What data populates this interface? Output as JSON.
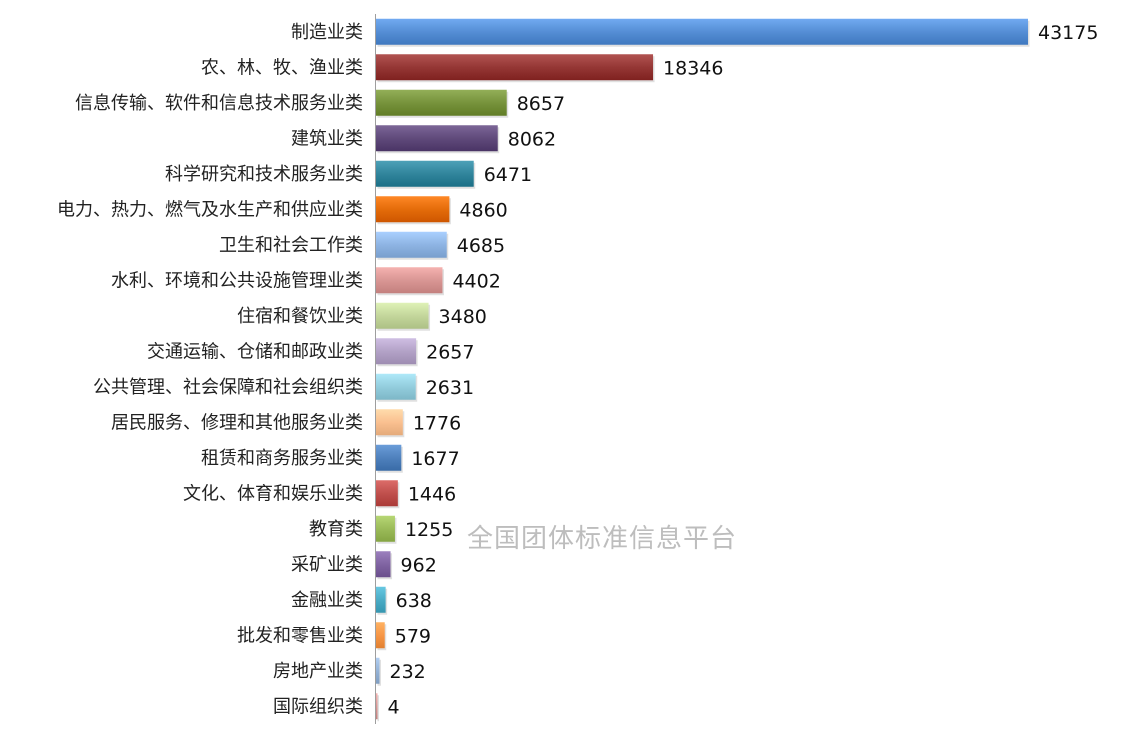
{
  "watermark": "全国团体标准信息平台",
  "chart_data": {
    "type": "bar",
    "orientation": "horizontal",
    "title": "",
    "xlabel": "",
    "ylabel": "",
    "categories": [
      "制造业类",
      "农、林、牧、渔业类",
      "信息传输、软件和信息技术服务业类",
      "建筑业类",
      "科学研究和技术服务业类",
      "电力、热力、燃气及水生产和供应业类",
      "卫生和社会工作类",
      "水利、环境和公共设施管理业类",
      "住宿和餐饮业类",
      "交通运输、仓储和邮政业类",
      "公共管理、社会保障和社会组织类",
      "居民服务、修理和其他服务业类",
      "租赁和商务服务业类",
      "文化、体育和娱乐业类",
      "教育类",
      "采矿业类",
      "金融业类",
      "批发和零售业类",
      "房地产业类",
      "国际组织类"
    ],
    "values": [
      43175,
      18346,
      8657,
      8062,
      6471,
      4860,
      4685,
      4402,
      3480,
      2657,
      2631,
      1776,
      1677,
      1446,
      1255,
      962,
      638,
      579,
      232,
      4
    ],
    "colors": [
      "#558ED5",
      "#953735",
      "#77933C",
      "#604A7B",
      "#31859C",
      "#E46C0A",
      "#8EB4E3",
      "#D99694",
      "#C3D69B",
      "#B3A2C7",
      "#93CDDD",
      "#FAC090",
      "#4F81BD",
      "#C0504D",
      "#9BBB59",
      "#8064A2",
      "#4BACC6",
      "#F79646",
      "#95B3D7",
      "#D99694"
    ],
    "xlim": [
      0,
      43175
    ],
    "grid": false,
    "legend": "none",
    "data_labels": true
  }
}
